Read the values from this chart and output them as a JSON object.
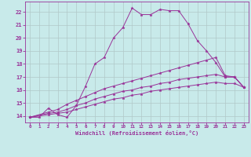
{
  "background_color": "#c8eaea",
  "grid_color": "#b0c8c8",
  "line_color": "#993399",
  "xlabel": "Windchill (Refroidissement éolien,°C)",
  "xlabel_color": "#993399",
  "tick_color": "#993399",
  "xlim": [
    -0.5,
    23.5
  ],
  "ylim": [
    13.5,
    22.8
  ],
  "xticks": [
    0,
    1,
    2,
    3,
    4,
    5,
    6,
    7,
    8,
    9,
    10,
    11,
    12,
    13,
    14,
    15,
    16,
    17,
    18,
    19,
    20,
    21,
    22,
    23
  ],
  "yticks": [
    14,
    15,
    16,
    17,
    18,
    19,
    20,
    21,
    22
  ],
  "curve1_x": [
    0,
    1,
    2,
    3,
    4,
    5,
    6,
    7,
    8,
    9,
    10,
    11,
    12,
    13,
    14,
    15,
    16,
    17,
    18,
    19,
    20,
    21,
    22,
    23
  ],
  "curve1_y": [
    13.9,
    13.9,
    14.6,
    14.1,
    13.9,
    14.8,
    16.3,
    18.0,
    18.5,
    20.0,
    20.8,
    22.3,
    21.8,
    21.8,
    22.2,
    22.1,
    22.1,
    21.1,
    19.8,
    19.0,
    18.1,
    17.0,
    17.0,
    16.2
  ],
  "curve2_x": [
    0,
    2,
    3,
    4,
    5,
    6,
    7,
    8,
    9,
    10,
    11,
    12,
    13,
    14,
    15,
    16,
    17,
    18,
    19,
    20,
    21,
    22,
    23
  ],
  "curve2_y": [
    13.9,
    14.3,
    14.5,
    14.9,
    15.2,
    15.5,
    15.8,
    16.1,
    16.3,
    16.5,
    16.7,
    16.9,
    17.1,
    17.3,
    17.5,
    17.7,
    17.9,
    18.1,
    18.3,
    18.5,
    17.1,
    17.0,
    16.2
  ],
  "curve3_x": [
    0,
    2,
    3,
    4,
    5,
    6,
    7,
    8,
    9,
    10,
    11,
    12,
    13,
    14,
    15,
    16,
    17,
    18,
    19,
    20,
    21,
    22,
    23
  ],
  "curve3_y": [
    13.9,
    14.2,
    14.3,
    14.5,
    14.8,
    15.0,
    15.3,
    15.5,
    15.7,
    15.9,
    16.0,
    16.2,
    16.3,
    16.5,
    16.6,
    16.8,
    16.9,
    17.0,
    17.1,
    17.2,
    17.0,
    17.0,
    16.2
  ],
  "curve4_x": [
    0,
    2,
    3,
    4,
    5,
    6,
    7,
    8,
    9,
    10,
    11,
    12,
    13,
    14,
    15,
    16,
    17,
    18,
    19,
    20,
    21,
    22,
    23
  ],
  "curve4_y": [
    13.9,
    14.1,
    14.2,
    14.3,
    14.5,
    14.7,
    14.9,
    15.1,
    15.3,
    15.4,
    15.6,
    15.7,
    15.9,
    16.0,
    16.1,
    16.2,
    16.3,
    16.4,
    16.5,
    16.6,
    16.5,
    16.5,
    16.2
  ]
}
